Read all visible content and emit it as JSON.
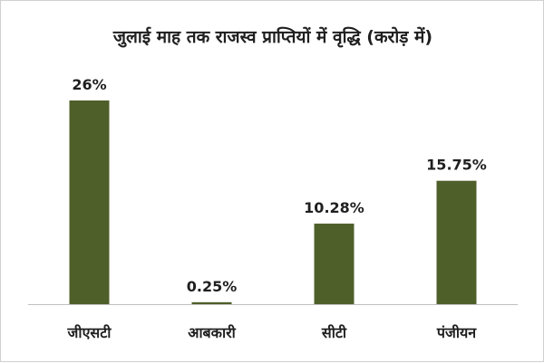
{
  "chart_data": {
    "type": "bar",
    "title": "जुलाई माह तक राजस्व प्राप्तियों में वृद्धि (करोड़ में)",
    "categories": [
      "जीएसटी",
      "आबकारी",
      "सीटी",
      "पंजीयन"
    ],
    "values": [
      26,
      0.25,
      10.28,
      15.75
    ],
    "data_labels": [
      "26%",
      "0.25%",
      "10.28%",
      "15.75%"
    ],
    "ylim": [
      0,
      26
    ],
    "grid": false,
    "legend": "none",
    "bar_color": "#4f5f2a",
    "axis_color": "#bfbfbf"
  }
}
